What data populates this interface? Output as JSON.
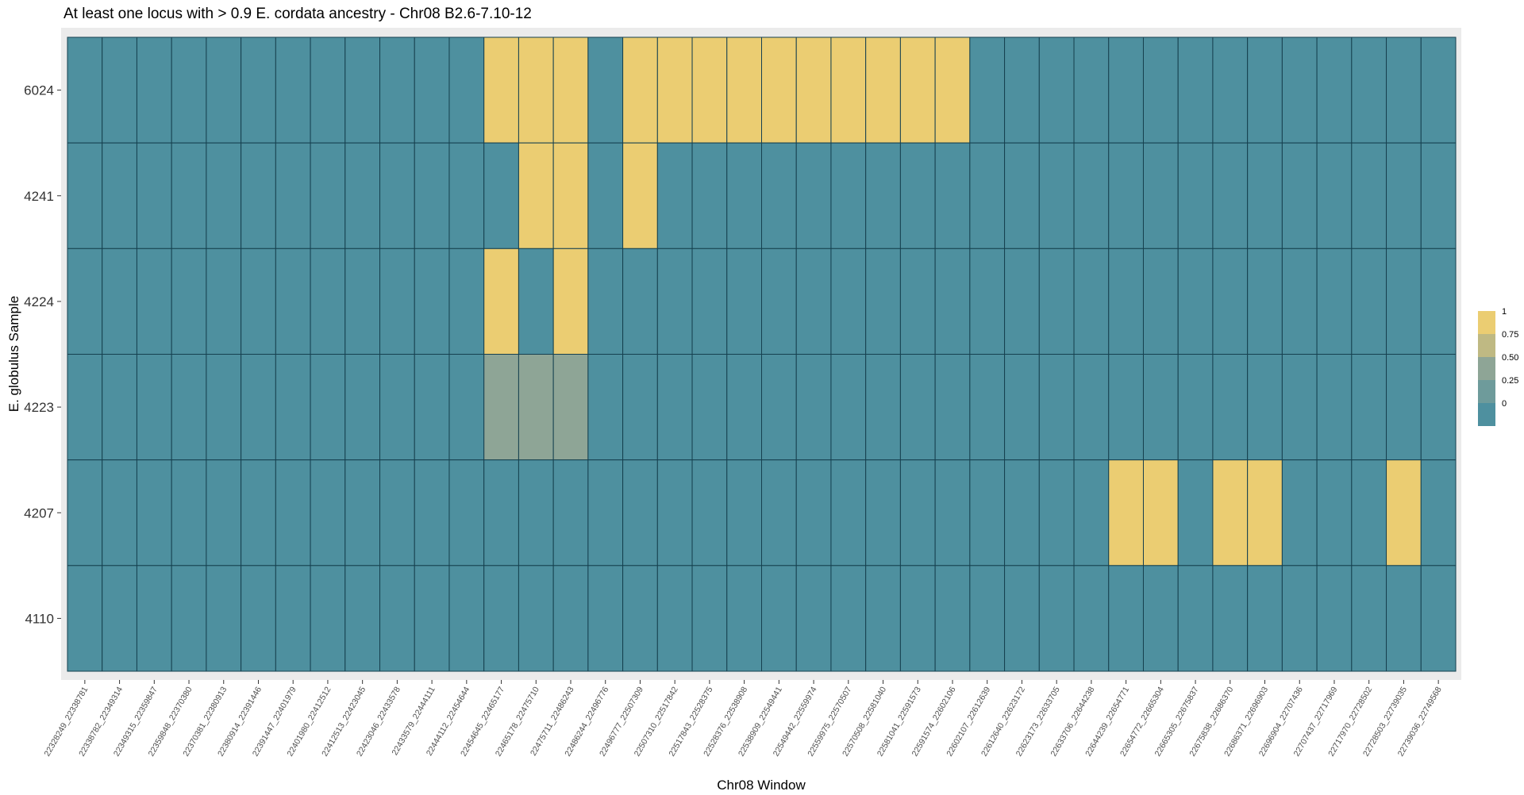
{
  "chart_data": {
    "type": "heatmap",
    "title": "At least one locus with > 0.9 E. cordata ancestry - Chr08 B2.6-7.10-12",
    "xlabel": "Chr08 Window",
    "ylabel": "E. globulus Sample",
    "y_categories": [
      "6024",
      "4241",
      "4224",
      "4223",
      "4207",
      "4110"
    ],
    "x_categories": [
      "22328249_22338781",
      "22338782_22349314",
      "22349315_22359847",
      "22359848_22370380",
      "22370381_22380913",
      "22380914_22391446",
      "22391447_22401979",
      "22401980_22412512",
      "22412513_22423045",
      "22423046_22433578",
      "22433579_22444111",
      "22444112_22454644",
      "22454645_22465177",
      "22465178_22475710",
      "22475711_22486243",
      "22486244_22496776",
      "22496777_22507309",
      "22507310_22517842",
      "22517843_22528375",
      "22528376_22538908",
      "22538909_22549441",
      "22549442_22559974",
      "22559975_22570507",
      "22570508_22581040",
      "22581041_22591573",
      "22591574_22602106",
      "22602107_22612639",
      "22612640_22623172",
      "22623173_22633705",
      "22633706_22644238",
      "22644239_22654771",
      "22654772_22665304",
      "22665305_22675837",
      "22675838_22686370",
      "22686371_22696903",
      "22696904_22707436",
      "22707437_22717969",
      "22717970_22728502",
      "22728503_22739035",
      "22739036_22749568"
    ],
    "values": [
      [
        0,
        0,
        0,
        0,
        0,
        0,
        0,
        0,
        0,
        0,
        0,
        0,
        1,
        1,
        1,
        0,
        1,
        1,
        1,
        1,
        1,
        1,
        1,
        1,
        1,
        1,
        0,
        0,
        0,
        0,
        0,
        0,
        0,
        0,
        0,
        0,
        0,
        0,
        0,
        0
      ],
      [
        0,
        0,
        0,
        0,
        0,
        0,
        0,
        0,
        0,
        0,
        0,
        0,
        0,
        1,
        1,
        0,
        1,
        0,
        0,
        0,
        0,
        0,
        0,
        0,
        0,
        0,
        0,
        0,
        0,
        0,
        0,
        0,
        0,
        0,
        0,
        0,
        0,
        0,
        0,
        0
      ],
      [
        0,
        0,
        0,
        0,
        0,
        0,
        0,
        0,
        0,
        0,
        0,
        0,
        1,
        0,
        1,
        0,
        0,
        0,
        0,
        0,
        0,
        0,
        0,
        0,
        0,
        0,
        0,
        0,
        0,
        0,
        0,
        0,
        0,
        0,
        0,
        0,
        0,
        0,
        0,
        0
      ],
      [
        0,
        0,
        0,
        0,
        0,
        0,
        0,
        0,
        0,
        0,
        0,
        0,
        0.5,
        0.5,
        0.5,
        0,
        0,
        0,
        0,
        0,
        0,
        0,
        0,
        0,
        0,
        0,
        0,
        0,
        0,
        0,
        0,
        0,
        0,
        0,
        0,
        0,
        0,
        0,
        0,
        0
      ],
      [
        0,
        0,
        0,
        0,
        0,
        0,
        0,
        0,
        0,
        0,
        0,
        0,
        0,
        0,
        0,
        0,
        0,
        0,
        0,
        0,
        0,
        0,
        0,
        0,
        0,
        0,
        0,
        0,
        0,
        0,
        1,
        1,
        0,
        1,
        1,
        0,
        0,
        0,
        1,
        0
      ],
      [
        0,
        0,
        0,
        0,
        0,
        0,
        0,
        0,
        0,
        0,
        0,
        0,
        0,
        0,
        0,
        0,
        0,
        0,
        0,
        0,
        0,
        0,
        0,
        0,
        0,
        0,
        0,
        0,
        0,
        0,
        0,
        0,
        0,
        0,
        0,
        0,
        0,
        0,
        0,
        0
      ]
    ],
    "color_scale": {
      "low": "#4e909f",
      "mid": "#8ea596",
      "high": "#ebcd72",
      "range": [
        0,
        1
      ]
    },
    "legend": {
      "ticks": [
        "1",
        "0.75",
        "0.50",
        "0.25",
        "0"
      ],
      "colors": [
        "#ebcd72",
        "#bfb983",
        "#8ea596",
        "#6e9b9b",
        "#4e909f"
      ],
      "placement": "right"
    },
    "tile_border": "#16404f",
    "panel_background": "#ebebeb"
  }
}
